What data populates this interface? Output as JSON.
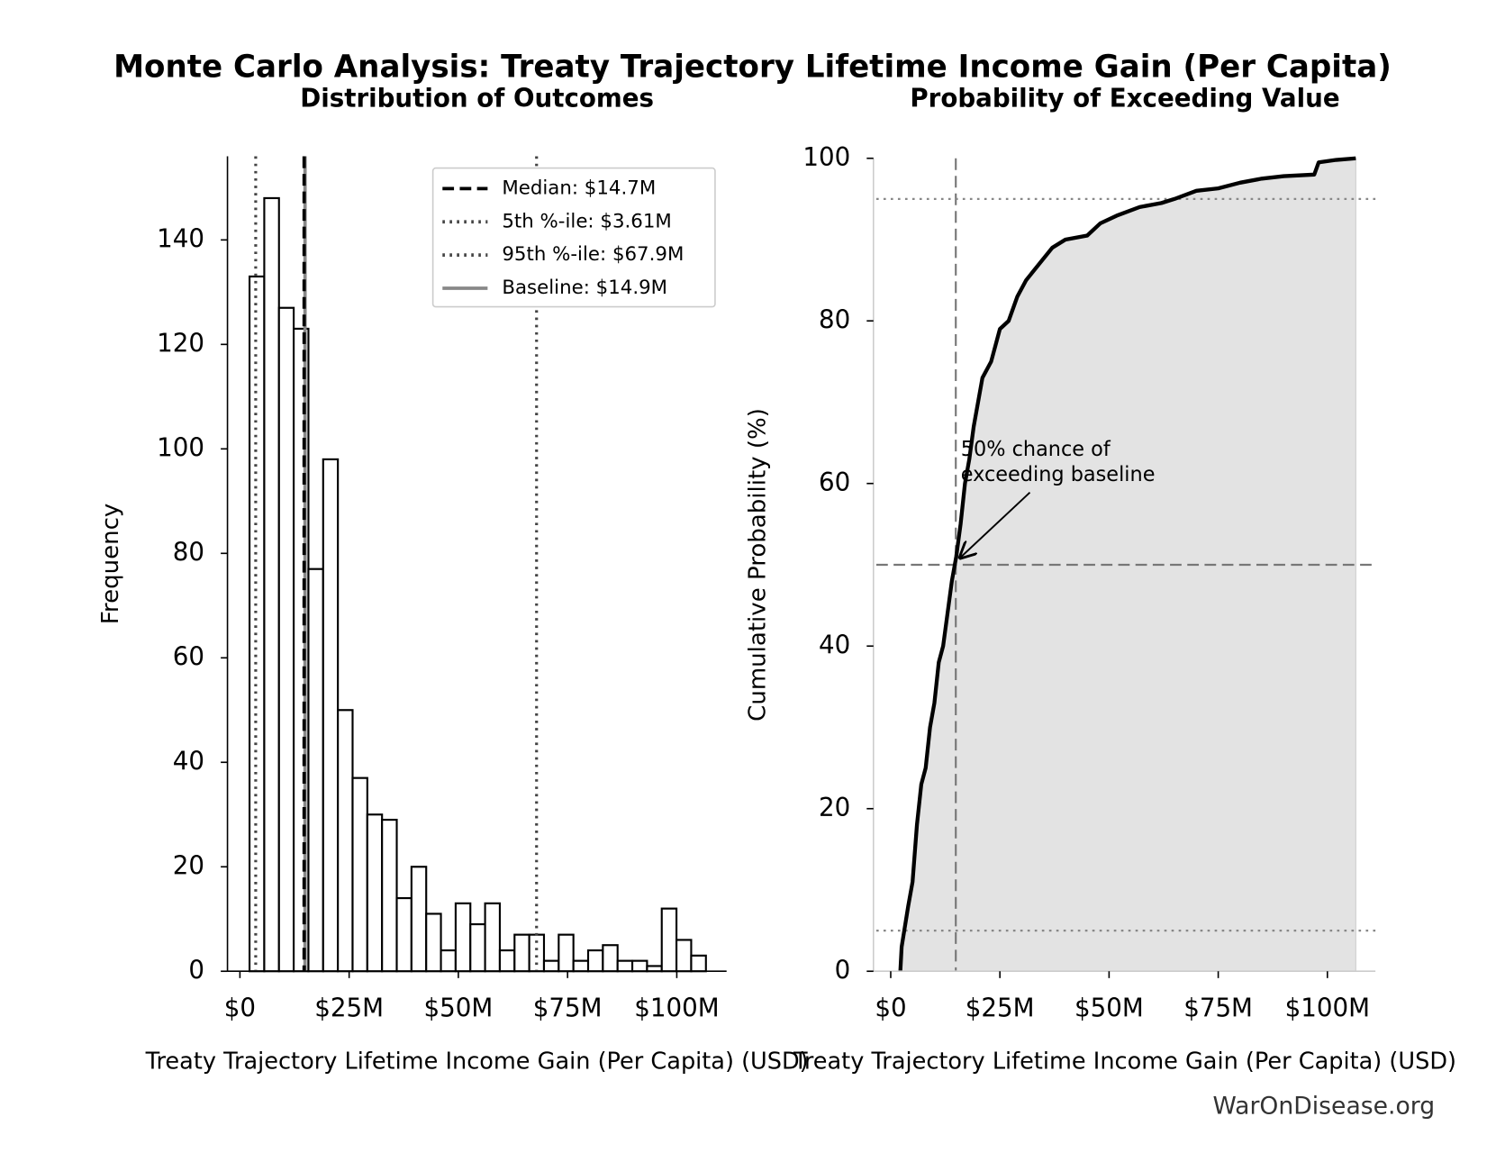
{
  "title": "Monte Carlo Analysis: Treaty Trajectory Lifetime Income Gain (Per Capita)",
  "source": "WarOnDisease.org",
  "chart_data": [
    {
      "type": "histogram",
      "title": "Distribution of Outcomes",
      "xlabel": "Treaty Trajectory Lifetime Income Gain (Per Capita) (USD)",
      "ylabel": "Frequency",
      "bins": [
        2200000,
        5570000,
        8940000,
        12310000,
        15680000,
        19050000,
        22420000,
        25790000,
        29160000,
        32530000,
        35900000,
        39270000,
        42640000,
        46010000,
        49380000,
        52750000,
        56120000,
        59490000,
        62860000,
        66230000,
        69600000,
        72970000,
        76340000,
        79710000,
        83080000,
        86450000,
        89820000,
        93190000,
        96560000,
        99930000,
        103300000,
        106670000
      ],
      "values": [
        133,
        148,
        127,
        123,
        77,
        98,
        50,
        37,
        30,
        29,
        14,
        20,
        11,
        4,
        13,
        9,
        13,
        4,
        7,
        7,
        2,
        7,
        2,
        4,
        5,
        2,
        2,
        1,
        12,
        6,
        3
      ],
      "color": "#ffffff",
      "edgecolor": "#000000",
      "xlim": [
        -2850000,
        111400000
      ],
      "xticks": [
        {
          "value": 0,
          "label": "$0"
        },
        {
          "value": 25000000,
          "label": "$25M"
        },
        {
          "value": 50000000,
          "label": "$50M"
        },
        {
          "value": 75000000,
          "label": "$75M"
        },
        {
          "value": 100000000,
          "label": "$100M"
        }
      ],
      "ylim": [
        0,
        156
      ],
      "yticks": [
        0,
        20,
        40,
        60,
        80,
        100,
        120,
        140
      ],
      "legend": "upper right",
      "reference_lines": [
        {
          "axis": "x",
          "value": 14900000,
          "label": "Baseline: $14.9M",
          "style": "solid",
          "color": "#888888"
        },
        {
          "axis": "x",
          "value": 14700000,
          "label": "Median: $14.7M",
          "style": "dashed",
          "color": "#000000"
        },
        {
          "axis": "x",
          "value": 3610000,
          "label": "5th %-ile: $3.61M",
          "style": "dotted",
          "color": "#444444"
        },
        {
          "axis": "x",
          "value": 67900000,
          "label": "95th %-ile: $67.9M",
          "style": "dotted",
          "color": "#444444"
        }
      ],
      "legend_order": [
        1,
        2,
        3,
        0
      ]
    },
    {
      "type": "cdf",
      "title": "Probability of Exceeding Value",
      "xlabel": "Treaty Trajectory Lifetime Income Gain (Per Capita) (USD)",
      "ylabel": "Cumulative Probability (%)",
      "x": [
        2200000,
        2500000,
        4000000,
        5000000,
        6000000,
        7000000,
        8000000,
        9000000,
        10000000,
        11000000,
        12000000,
        13000000,
        14000000,
        15000000,
        16000000,
        17000000,
        18000000,
        19000000,
        20000000,
        21000000,
        23000000,
        25000000,
        27000000,
        29000000,
        31000000,
        34000000,
        37000000,
        40000000,
        45000000,
        48000000,
        52000000,
        57000000,
        62000000,
        65000000,
        70000000,
        75000000,
        80000000,
        85000000,
        90000000,
        97000000,
        98000000,
        102000000,
        106500000
      ],
      "values": [
        0,
        3,
        8,
        11,
        18,
        23,
        25,
        30,
        33,
        38,
        40,
        44,
        48,
        51,
        55,
        60,
        63,
        67,
        70,
        73,
        75,
        79,
        80,
        83,
        85,
        87,
        89,
        90,
        90.5,
        92,
        93,
        94,
        94.5,
        95,
        96,
        96.3,
        97,
        97.5,
        97.8,
        98,
        99.5,
        99.8,
        100
      ],
      "color": "#000000",
      "fill_color": "#e3e3e3",
      "xlim": [
        -3960000,
        111000000
      ],
      "xticks": [
        {
          "value": 0,
          "label": "$0"
        },
        {
          "value": 25000000,
          "label": "$25M"
        },
        {
          "value": 50000000,
          "label": "$50M"
        },
        {
          "value": 75000000,
          "label": "$75M"
        },
        {
          "value": 100000000,
          "label": "$100M"
        }
      ],
      "ylim": [
        0,
        100
      ],
      "yticks": [
        0,
        20,
        40,
        60,
        80,
        100
      ],
      "reference_lines": [
        {
          "axis": "x",
          "value": 14900000,
          "style": "dashed",
          "color": "#777777"
        },
        {
          "axis": "y",
          "value": 50,
          "style": "dashed",
          "color": "#777777"
        },
        {
          "axis": "y",
          "value": 95,
          "style": "dotted",
          "color": "#888888"
        },
        {
          "axis": "y",
          "value": 5,
          "style": "dotted",
          "color": "#888888"
        }
      ],
      "annotation": "50% chance of\nexceeding baseline"
    }
  ]
}
